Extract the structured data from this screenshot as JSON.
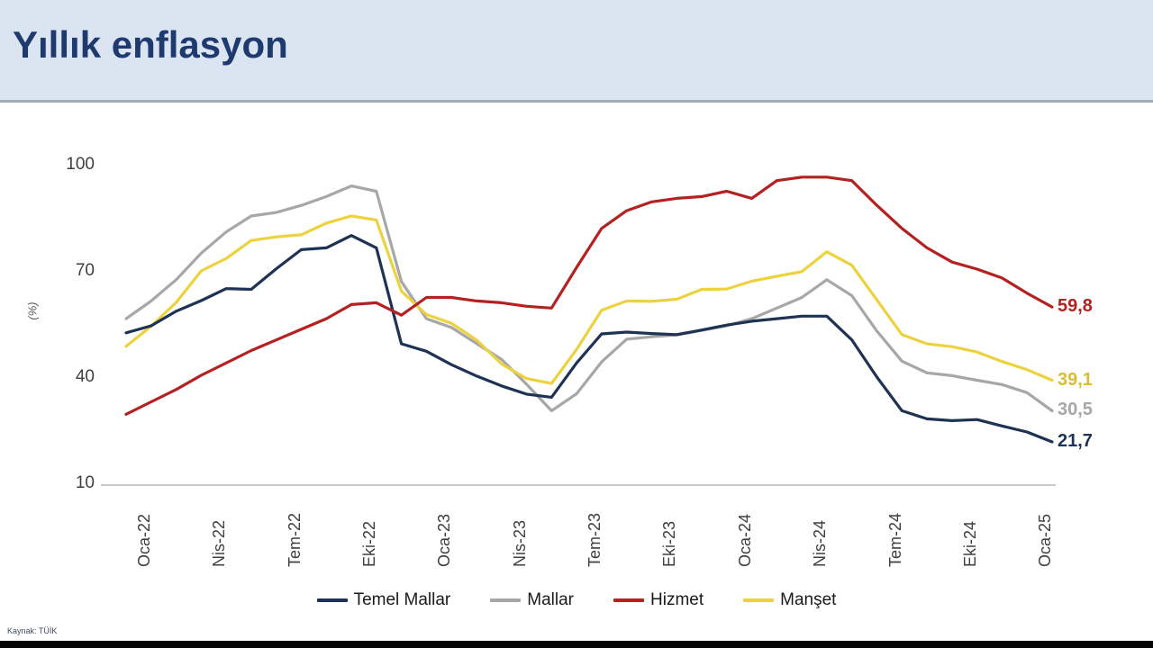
{
  "header": {
    "title": "Yıllık enflasyon"
  },
  "footer": {
    "source": "Kaynak: TÜİK"
  },
  "chart_data": {
    "type": "line",
    "title": "Yıllık enflasyon",
    "xlabel": "",
    "ylabel": "(%)",
    "ylim": [
      10,
      100
    ],
    "yticks": [
      10,
      40,
      70,
      100
    ],
    "grid": false,
    "legend_position": "bottom",
    "x_tick_every": 3,
    "categories": [
      "Oca-22",
      "Şub-22",
      "Mar-22",
      "Nis-22",
      "May-22",
      "Haz-22",
      "Tem-22",
      "Ağu-22",
      "Eyl-22",
      "Eki-22",
      "Kas-22",
      "Ara-22",
      "Oca-23",
      "Şub-23",
      "Mar-23",
      "Nis-23",
      "May-23",
      "Haz-23",
      "Tem-23",
      "Ağu-23",
      "Eyl-23",
      "Eki-23",
      "Kas-23",
      "Ara-23",
      "Oca-24",
      "Şub-24",
      "Mar-24",
      "Nis-24",
      "May-24",
      "Haz-24",
      "Tem-24",
      "Ağu-24",
      "Eyl-24",
      "Eki-24",
      "Kas-24",
      "Ara-24",
      "Oca-25",
      "Şub-25"
    ],
    "visible_x_tick_labels": [
      "Oca-22",
      "Nis-22",
      "Tem-22",
      "Eki-22",
      "Oca-23",
      "Nis-23",
      "Tem-23",
      "Eki-23",
      "Oca-24",
      "Nis-24",
      "Tem-24",
      "Eki-24",
      "Oca-25"
    ],
    "series": [
      {
        "name": "Temel Mallar",
        "color": "#1e3354",
        "end_label": "21,7",
        "end_value": 21.7,
        "values": [
          52.5,
          54.5,
          58.6,
          61.6,
          65.0,
          64.8,
          70.6,
          76.0,
          76.5,
          80.0,
          76.5,
          49.4,
          47.3,
          43.5,
          40.3,
          37.5,
          35.2,
          34.3,
          44.0,
          52.2,
          52.7,
          52.3,
          52.0,
          53.3,
          54.7,
          55.8,
          56.5,
          57.2,
          57.2,
          50.5,
          40.0,
          30.5,
          28.2,
          27.7,
          28.0,
          26.2,
          24.5,
          21.7
        ]
      },
      {
        "name": "Mallar",
        "color": "#a7a7a7",
        "end_label": "30,5",
        "end_value": 30.5,
        "values": [
          56.5,
          61.5,
          67.5,
          75.0,
          81.0,
          85.5,
          86.5,
          88.5,
          91.0,
          94.0,
          92.5,
          67.0,
          56.5,
          54.0,
          49.5,
          45.0,
          38.0,
          30.5,
          35.3,
          44.3,
          50.7,
          51.4,
          51.9,
          53.2,
          54.5,
          56.5,
          59.5,
          62.5,
          67.5,
          63.0,
          53.0,
          44.5,
          41.2,
          40.4,
          39.1,
          37.9,
          35.6,
          30.5
        ]
      },
      {
        "name": "Hizmet",
        "color": "#b52121",
        "end_label": "59,8",
        "end_value": 59.8,
        "values": [
          29.5,
          33.0,
          36.5,
          40.5,
          44.0,
          47.5,
          50.5,
          53.5,
          56.5,
          60.5,
          61.0,
          57.5,
          62.5,
          62.5,
          61.5,
          61.0,
          60.0,
          59.5,
          71.0,
          82.0,
          87.0,
          89.5,
          90.5,
          91.0,
          92.5,
          90.5,
          95.5,
          96.5,
          96.5,
          95.5,
          88.5,
          82.0,
          76.5,
          72.5,
          70.5,
          68.0,
          63.7,
          59.8
        ]
      },
      {
        "name": "Manşet",
        "color": "#ecd23e",
        "end_label": "39,1",
        "end_value": 39.1,
        "values": [
          48.7,
          54.4,
          61.1,
          70.0,
          73.5,
          78.6,
          79.6,
          80.2,
          83.5,
          85.5,
          84.4,
          64.3,
          57.7,
          55.2,
          50.5,
          43.7,
          39.6,
          38.2,
          47.8,
          58.9,
          61.5,
          61.4,
          62.0,
          64.8,
          64.9,
          67.1,
          68.5,
          69.8,
          75.4,
          71.6,
          61.8,
          52.0,
          49.4,
          48.6,
          47.1,
          44.4,
          42.1,
          39.1
        ]
      }
    ],
    "end_label_colors": {
      "Temel Mallar": "#1e3354",
      "Mallar": "#a7a7a7",
      "Hizmet": "#b52121",
      "Manşet": "#d9bd34"
    },
    "draw_order": [
      "Mallar",
      "Manşet",
      "Temel Mallar",
      "Hizmet"
    ]
  }
}
